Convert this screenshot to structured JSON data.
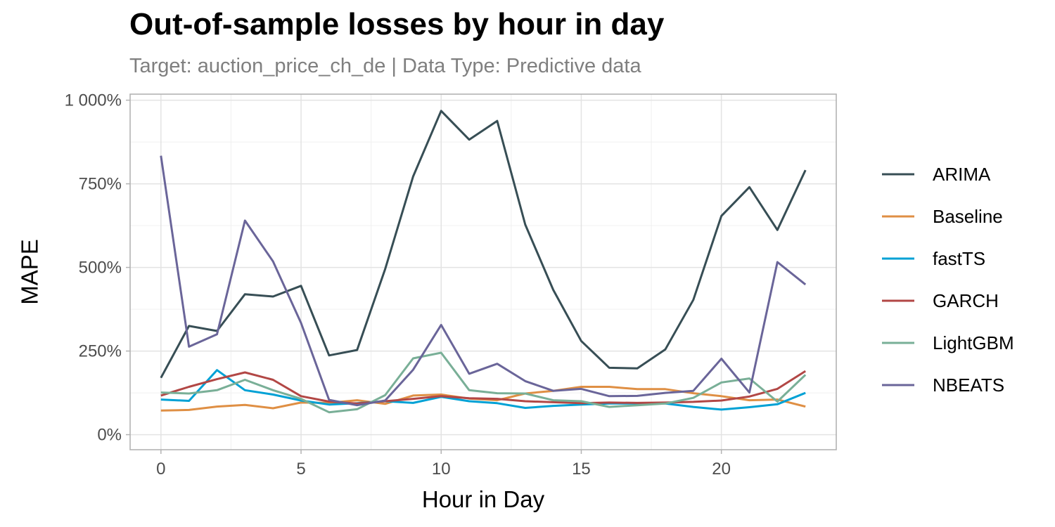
{
  "chart_data": {
    "type": "line",
    "title": "Out-of-sample losses by hour in day",
    "subtitle": "Target: auction_price_ch_de | Data Type: Predictive data",
    "xlabel": "Hour in Day",
    "ylabel": "MAPE",
    "xlim": [
      -1.1,
      24.1
    ],
    "ylim": [
      -45,
      1018
    ],
    "x_ticks": [
      0,
      5,
      10,
      15,
      20
    ],
    "x_tick_labels": [
      "0",
      "5",
      "10",
      "15",
      "20"
    ],
    "y_ticks": [
      0,
      250,
      500,
      750,
      1000
    ],
    "y_tick_labels": [
      "0%",
      "250%",
      "500%",
      "750%",
      "1 000%"
    ],
    "grid": true,
    "legend_position": "right",
    "x": [
      0,
      1,
      2,
      3,
      4,
      5,
      6,
      7,
      8,
      9,
      10,
      11,
      12,
      13,
      14,
      15,
      16,
      17,
      18,
      19,
      20,
      21,
      22,
      23
    ],
    "series": [
      {
        "name": "ARIMA",
        "color": "#374e55",
        "values": [
          170,
          325,
          310,
          420,
          413,
          445,
          237,
          253,
          495,
          772,
          968,
          882,
          938,
          628,
          433,
          280,
          200,
          198,
          255,
          403,
          654,
          740,
          612,
          791
        ]
      },
      {
        "name": "Baseline",
        "color": "#df8f44",
        "values": [
          72,
          74,
          84,
          89,
          79,
          96,
          95,
          103,
          92,
          117,
          120,
          108,
          103,
          123,
          131,
          143,
          143,
          136,
          136,
          124,
          115,
          103,
          105,
          84
        ]
      },
      {
        "name": "fastTS",
        "color": "#00a1d5",
        "values": [
          105,
          101,
          193,
          133,
          120,
          102,
          90,
          94,
          100,
          95,
          113,
          100,
          94,
          80,
          86,
          90,
          93,
          93,
          93,
          83,
          75,
          82,
          91,
          125
        ]
      },
      {
        "name": "GARCH",
        "color": "#b24745",
        "values": [
          117,
          143,
          166,
          186,
          164,
          115,
          99,
          93,
          100,
          107,
          115,
          109,
          107,
          100,
          97,
          94,
          96,
          95,
          96,
          98,
          102,
          114,
          137,
          190
        ]
      },
      {
        "name": "LightGBM",
        "color": "#79af97",
        "values": [
          126,
          123,
          133,
          164,
          133,
          107,
          67,
          76,
          118,
          228,
          245,
          133,
          124,
          123,
          103,
          100,
          83,
          88,
          93,
          110,
          156,
          168,
          99,
          179
        ]
      },
      {
        "name": "NBEATS",
        "color": "#6a6599",
        "values": [
          834,
          263,
          300,
          640,
          518,
          334,
          104,
          88,
          102,
          194,
          328,
          182,
          212,
          160,
          131,
          137,
          115,
          116,
          125,
          131,
          227,
          126,
          516,
          449
        ]
      }
    ]
  }
}
